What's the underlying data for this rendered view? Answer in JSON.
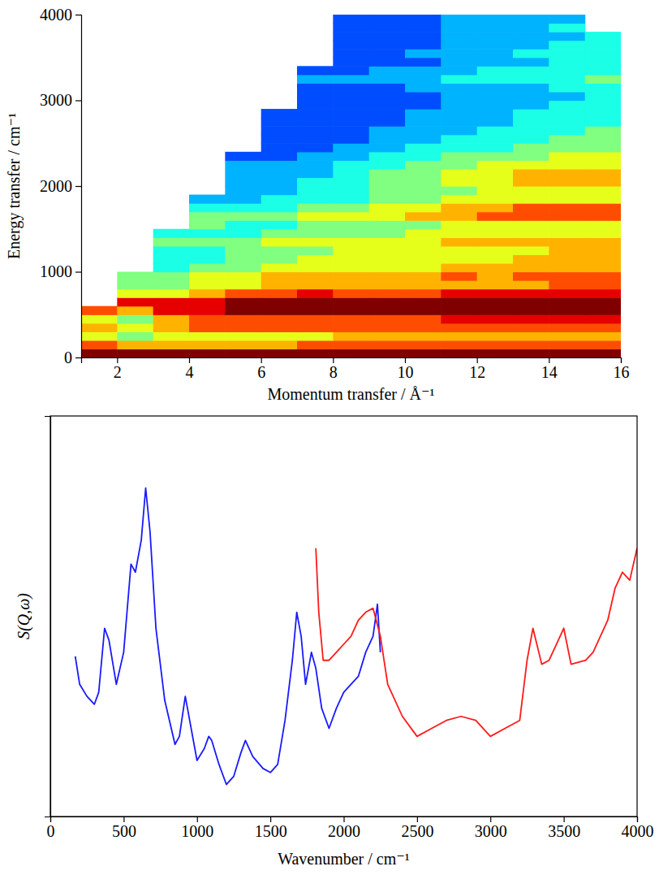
{
  "chart_data": [
    {
      "type": "heatmap",
      "x_label": "Momentum transfer / Å⁻¹",
      "y_label": "Energy transfer / cm⁻¹",
      "xlim": [
        1,
        16
      ],
      "xticks": [
        2,
        4,
        6,
        8,
        10,
        12,
        14,
        16
      ],
      "ylim": [
        0,
        4000
      ],
      "yticks": [
        0,
        1000,
        2000,
        3000,
        4000
      ],
      "x_bins": [
        1,
        2,
        3,
        4,
        5,
        6,
        7,
        8,
        9,
        10,
        11,
        12,
        13,
        14,
        15,
        16
      ],
      "y_bins": [
        0,
        100,
        200,
        300,
        400,
        500,
        600,
        700,
        800,
        900,
        1000,
        1100,
        1200,
        1300,
        1400,
        1500,
        1600,
        1700,
        1800,
        1900,
        2000,
        2100,
        2200,
        2300,
        2400,
        2500,
        2600,
        2700,
        2800,
        2900,
        3000,
        3100,
        3200,
        3300,
        3400,
        3500,
        3600,
        3700,
        3800,
        3900,
        4000
      ],
      "zlim": [
        0,
        10
      ],
      "cells": [
        [
          10,
          10,
          10,
          10,
          10,
          10,
          10,
          10,
          10,
          10,
          10,
          10,
          10,
          10,
          10
        ],
        [
          8,
          7,
          7,
          7,
          7,
          7,
          8,
          8,
          8,
          8,
          8,
          8,
          8,
          8,
          8
        ],
        [
          6,
          5,
          6,
          6,
          6,
          6,
          6,
          7,
          7,
          7,
          7,
          7,
          7,
          7,
          7
        ],
        [
          7,
          6,
          7,
          8,
          8,
          8,
          8,
          8,
          8,
          8,
          8,
          8,
          8,
          8,
          8
        ],
        [
          6,
          5,
          7,
          8,
          8,
          8,
          8,
          8,
          8,
          8,
          9,
          9,
          9,
          9,
          9
        ],
        [
          8,
          7,
          9,
          9,
          10,
          10,
          10,
          10,
          10,
          10,
          10,
          10,
          10,
          10,
          10
        ],
        [
          null,
          9,
          9,
          9,
          10,
          10,
          10,
          10,
          10,
          10,
          10,
          10,
          10,
          10,
          10
        ],
        [
          null,
          6,
          6,
          7,
          8,
          8,
          9,
          8,
          8,
          8,
          9,
          9,
          9,
          9,
          9
        ],
        [
          null,
          5,
          5,
          6,
          6,
          7,
          7,
          7,
          7,
          7,
          7,
          7,
          7,
          8,
          8
        ],
        [
          null,
          5,
          5,
          6,
          6,
          7,
          7,
          7,
          7,
          7,
          8,
          7,
          8,
          8,
          8
        ],
        [
          null,
          null,
          4,
          5,
          5,
          6,
          6,
          6,
          6,
          6,
          7,
          7,
          7,
          7,
          7
        ],
        [
          null,
          null,
          4,
          4,
          5,
          5,
          6,
          6,
          6,
          6,
          6,
          6,
          7,
          7,
          7
        ],
        [
          null,
          null,
          4,
          4,
          5,
          5,
          5,
          6,
          6,
          6,
          6,
          6,
          6,
          7,
          7
        ],
        [
          null,
          null,
          5,
          5,
          5,
          6,
          6,
          6,
          6,
          6,
          7,
          7,
          7,
          7,
          7
        ],
        [
          null,
          null,
          4,
          4,
          4,
          5,
          5,
          5,
          5,
          6,
          6,
          6,
          6,
          6,
          6
        ],
        [
          null,
          null,
          null,
          5,
          4,
          4,
          5,
          5,
          5,
          5,
          6,
          6,
          6,
          6,
          6
        ],
        [
          null,
          null,
          null,
          5,
          5,
          5,
          6,
          6,
          6,
          7,
          7,
          8,
          8,
          8,
          8
        ],
        [
          null,
          null,
          null,
          4,
          4,
          4,
          5,
          5,
          6,
          6,
          7,
          7,
          8,
          8,
          8
        ],
        [
          null,
          null,
          null,
          3,
          3,
          4,
          4,
          4,
          5,
          5,
          6,
          6,
          6,
          6,
          6
        ],
        [
          null,
          null,
          null,
          null,
          3,
          3,
          4,
          4,
          5,
          5,
          5,
          6,
          6,
          6,
          6
        ],
        [
          null,
          null,
          null,
          null,
          3,
          3,
          4,
          4,
          5,
          5,
          6,
          6,
          7,
          7,
          7
        ],
        [
          null,
          null,
          null,
          null,
          3,
          3,
          3,
          4,
          5,
          5,
          6,
          6,
          7,
          7,
          7
        ],
        [
          null,
          null,
          null,
          null,
          3,
          3,
          3,
          4,
          4,
          5,
          5,
          6,
          6,
          6,
          6
        ],
        [
          null,
          null,
          null,
          null,
          2,
          2,
          3,
          3,
          4,
          4,
          5,
          5,
          5,
          6,
          6
        ],
        [
          null,
          null,
          null,
          null,
          null,
          2,
          2,
          3,
          3,
          4,
          4,
          4,
          5,
          5,
          5
        ],
        [
          null,
          null,
          null,
          null,
          null,
          2,
          2,
          2,
          3,
          3,
          4,
          4,
          4,
          5,
          5
        ],
        [
          null,
          null,
          null,
          null,
          null,
          2,
          2,
          2,
          3,
          3,
          3,
          4,
          4,
          4,
          5
        ],
        [
          null,
          null,
          null,
          null,
          null,
          2,
          2,
          2,
          2,
          3,
          3,
          3,
          4,
          4,
          4
        ],
        [
          null,
          null,
          null,
          null,
          null,
          2,
          2,
          2,
          2,
          3,
          3,
          3,
          4,
          4,
          4
        ],
        [
          null,
          null,
          null,
          null,
          null,
          null,
          2,
          2,
          2,
          2,
          3,
          3,
          3,
          4,
          4
        ],
        [
          null,
          null,
          null,
          null,
          null,
          null,
          2,
          2,
          2,
          2,
          3,
          3,
          3,
          3,
          4
        ],
        [
          null,
          null,
          null,
          null,
          null,
          null,
          2,
          2,
          2,
          3,
          3,
          3,
          3,
          4,
          4
        ],
        [
          null,
          null,
          null,
          null,
          null,
          null,
          3,
          3,
          3,
          3,
          4,
          4,
          4,
          4,
          5
        ],
        [
          null,
          null,
          null,
          null,
          null,
          null,
          2,
          2,
          3,
          3,
          3,
          4,
          4,
          4,
          4
        ],
        [
          null,
          null,
          null,
          null,
          null,
          null,
          null,
          2,
          2,
          2,
          3,
          3,
          3,
          4,
          4
        ],
        [
          null,
          null,
          null,
          null,
          null,
          null,
          null,
          2,
          2,
          3,
          3,
          3,
          4,
          4,
          4
        ],
        [
          null,
          null,
          null,
          null,
          null,
          null,
          null,
          2,
          2,
          2,
          3,
          3,
          3,
          4,
          4
        ],
        [
          null,
          null,
          null,
          null,
          null,
          null,
          null,
          2,
          2,
          2,
          3,
          3,
          3,
          3,
          4
        ],
        [
          null,
          null,
          null,
          null,
          null,
          null,
          null,
          2,
          2,
          2,
          3,
          3,
          3,
          4,
          null
        ],
        [
          null,
          null,
          null,
          null,
          null,
          null,
          null,
          2,
          2,
          2,
          3,
          3,
          3,
          3,
          null
        ]
      ]
    },
    {
      "type": "line",
      "x_label": "Wavenumber / cm⁻¹",
      "y_label": "S(Q,ω)",
      "xlim": [
        0,
        4000
      ],
      "xticks": [
        0,
        500,
        1000,
        1500,
        2000,
        2500,
        3000,
        3500,
        4000
      ],
      "ylim": [
        0,
        100
      ],
      "tick_labels": "x",
      "series": [
        {
          "color": "#1a1aff",
          "x": [
            170,
            200,
            250,
            300,
            330,
            370,
            400,
            450,
            500,
            550,
            580,
            620,
            650,
            680,
            720,
            780,
            850,
            880,
            920,
            950,
            1000,
            1050,
            1080,
            1100,
            1150,
            1200,
            1250,
            1300,
            1330,
            1380,
            1450,
            1500,
            1550,
            1600,
            1650,
            1680,
            1710,
            1740,
            1780,
            1810,
            1850,
            1900,
            1950,
            2000,
            2100,
            2150,
            2200,
            2230,
            2250
          ],
          "values": [
            40,
            33,
            30,
            28,
            31,
            47,
            44,
            33,
            41,
            63,
            61,
            69,
            82,
            71,
            47,
            29,
            18,
            20,
            30,
            24,
            14,
            17,
            20,
            19,
            13,
            8,
            10,
            16,
            19,
            15,
            12,
            11,
            13,
            24,
            39,
            51,
            45,
            33,
            41,
            37,
            27,
            22,
            27,
            31,
            35,
            41,
            45,
            53,
            41
          ]
        },
        {
          "color": "#ff1a1a",
          "x": [
            1810,
            1830,
            1860,
            1900,
            1950,
            2000,
            2050,
            2100,
            2150,
            2200,
            2250,
            2300,
            2400,
            2500,
            2600,
            2700,
            2800,
            2900,
            3000,
            3100,
            3200,
            3250,
            3290,
            3350,
            3400,
            3450,
            3500,
            3550,
            3650,
            3700,
            3800,
            3850,
            3900,
            3950,
            4000
          ],
          "values": [
            67,
            51,
            39,
            39,
            41,
            43,
            45,
            49,
            51,
            52,
            45,
            33,
            25,
            20,
            22,
            24,
            25,
            24,
            20,
            22,
            24,
            39,
            47,
            38,
            39,
            43,
            47,
            38,
            39,
            41,
            49,
            57,
            61,
            59,
            67
          ]
        }
      ]
    }
  ]
}
